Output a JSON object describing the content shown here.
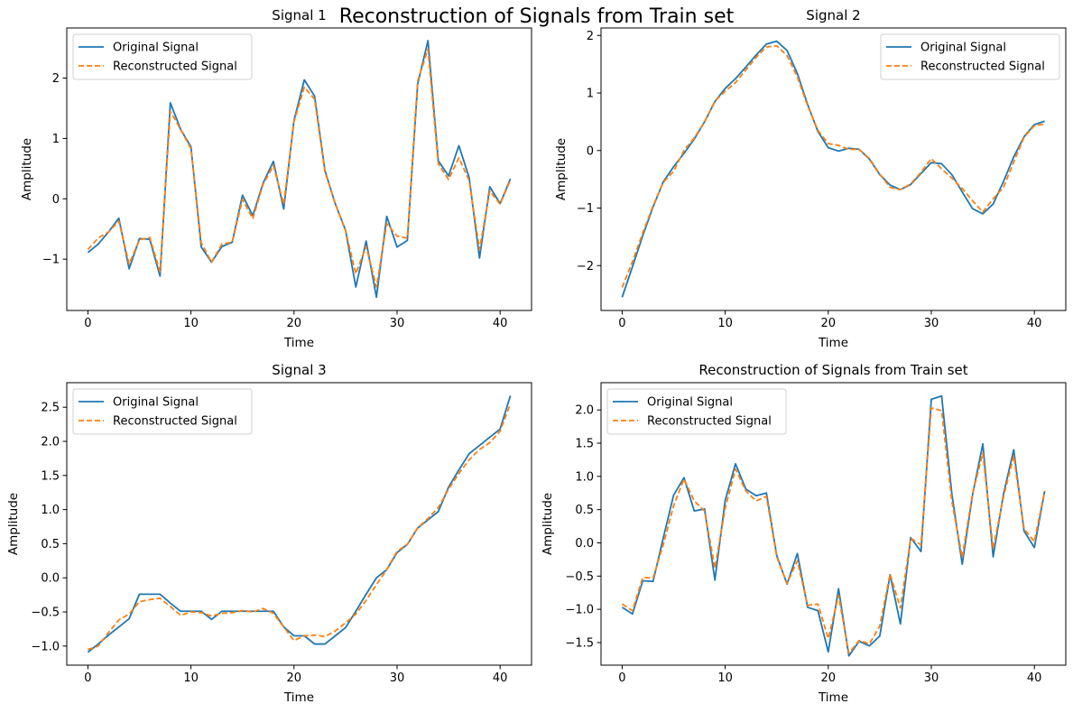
{
  "figure": {
    "suptitle": "Reconstruction of Signals from Train set"
  },
  "colors": {
    "original": "#1f77b4",
    "reconstructed": "#ff7f0e"
  },
  "chart_data": [
    {
      "type": "line",
      "title": "Signal 1",
      "xlabel": "Time",
      "ylabel": "Amplitude",
      "xlim": [
        -2.05,
        43.05
      ],
      "ylim": [
        -1.85,
        2.83
      ],
      "xticks": [
        0,
        10,
        20,
        30,
        40
      ],
      "yticks": [
        -1,
        0,
        1,
        2
      ],
      "legend_position": "upper left",
      "series": [
        {
          "name": "Original Signal",
          "style": "solid",
          "values": [
            -0.89,
            -0.75,
            -0.55,
            -0.32,
            -1.16,
            -0.66,
            -0.67,
            -1.28,
            1.59,
            1.15,
            0.86,
            -0.8,
            -1.05,
            -0.79,
            -0.72,
            0.06,
            -0.28,
            0.26,
            0.62,
            -0.17,
            1.3,
            1.97,
            1.7,
            0.47,
            -0.08,
            -0.52,
            -1.46,
            -0.7,
            -1.63,
            -0.29,
            -0.8,
            -0.69,
            1.9,
            2.62,
            0.63,
            0.38,
            0.88,
            0.35,
            -0.98,
            0.2,
            -0.08,
            0.33
          ]
        },
        {
          "name": "Reconstructed Signal",
          "style": "dashed",
          "values": [
            -0.84,
            -0.65,
            -0.55,
            -0.37,
            -1.08,
            -0.68,
            -0.64,
            -1.21,
            1.45,
            1.15,
            0.83,
            -0.73,
            -1.05,
            -0.75,
            -0.72,
            -0.01,
            -0.33,
            0.24,
            0.55,
            -0.09,
            1.28,
            1.85,
            1.65,
            0.45,
            -0.08,
            -0.53,
            -1.24,
            -0.79,
            -1.46,
            -0.41,
            -0.62,
            -0.65,
            1.95,
            2.48,
            0.58,
            0.32,
            0.68,
            0.3,
            -0.84,
            0.13,
            -0.09,
            0.31
          ]
        }
      ]
    },
    {
      "type": "line",
      "title": "Signal 2",
      "xlabel": "Time",
      "ylabel": "Amplitude",
      "xlim": [
        -2.05,
        43.05
      ],
      "ylim": [
        -2.78,
        2.13
      ],
      "xticks": [
        0,
        10,
        20,
        30,
        40
      ],
      "yticks": [
        -2,
        -1,
        0,
        1,
        2
      ],
      "legend_position": "upper right",
      "series": [
        {
          "name": "Original Signal",
          "style": "solid",
          "values": [
            -2.55,
            -2.02,
            -1.48,
            -0.98,
            -0.54,
            -0.28,
            -0.05,
            0.2,
            0.5,
            0.85,
            1.08,
            1.25,
            1.45,
            1.66,
            1.85,
            1.9,
            1.74,
            1.34,
            0.8,
            0.33,
            0.05,
            -0.01,
            0.04,
            0.02,
            -0.15,
            -0.42,
            -0.6,
            -0.68,
            -0.59,
            -0.4,
            -0.21,
            -0.23,
            -0.42,
            -0.72,
            -1.01,
            -1.1,
            -0.93,
            -0.54,
            -0.11,
            0.24,
            0.45,
            0.51
          ]
        },
        {
          "name": "Reconstructed Signal",
          "style": "dashed",
          "values": [
            -2.38,
            -1.93,
            -1.43,
            -0.96,
            -0.55,
            -0.36,
            0.0,
            0.22,
            0.5,
            0.86,
            1.03,
            1.18,
            1.4,
            1.62,
            1.8,
            1.82,
            1.65,
            1.28,
            0.78,
            0.35,
            0.12,
            0.09,
            0.02,
            0.02,
            -0.14,
            -0.41,
            -0.64,
            -0.68,
            -0.58,
            -0.38,
            -0.14,
            -0.32,
            -0.48,
            -0.66,
            -0.87,
            -1.07,
            -0.84,
            -0.64,
            -0.2,
            0.23,
            0.43,
            0.46
          ]
        }
      ]
    },
    {
      "type": "line",
      "title": "Signal 3",
      "xlabel": "Time",
      "ylabel": "Amplitude",
      "xlim": [
        -2.05,
        43.05
      ],
      "ylim": [
        -1.28,
        2.86
      ],
      "xticks": [
        0,
        10,
        20,
        30,
        40
      ],
      "yticks": [
        -1.0,
        -0.5,
        0.0,
        0.5,
        1.0,
        1.5,
        2.0,
        2.5
      ],
      "legend_position": "upper left",
      "series": [
        {
          "name": "Original Signal",
          "style": "solid",
          "values": [
            -1.09,
            -0.97,
            -0.84,
            -0.72,
            -0.6,
            -0.24,
            -0.24,
            -0.24,
            -0.37,
            -0.49,
            -0.49,
            -0.49,
            -0.61,
            -0.49,
            -0.49,
            -0.49,
            -0.49,
            -0.49,
            -0.49,
            -0.72,
            -0.85,
            -0.85,
            -0.97,
            -0.97,
            -0.85,
            -0.73,
            -0.49,
            -0.24,
            0.0,
            0.12,
            0.37,
            0.49,
            0.73,
            0.85,
            0.97,
            1.33,
            1.58,
            1.82,
            1.94,
            2.06,
            2.18,
            2.67
          ]
        },
        {
          "name": "Reconstructed Signal",
          "style": "dashed",
          "values": [
            -1.05,
            -1.0,
            -0.8,
            -0.62,
            -0.53,
            -0.35,
            -0.32,
            -0.3,
            -0.42,
            -0.55,
            -0.5,
            -0.51,
            -0.56,
            -0.52,
            -0.51,
            -0.48,
            -0.5,
            -0.45,
            -0.52,
            -0.72,
            -0.92,
            -0.85,
            -0.84,
            -0.86,
            -0.78,
            -0.66,
            -0.53,
            -0.33,
            -0.1,
            0.12,
            0.39,
            0.49,
            0.73,
            0.87,
            1.03,
            1.3,
            1.53,
            1.73,
            1.88,
            1.98,
            2.15,
            2.55
          ]
        }
      ]
    },
    {
      "type": "line",
      "title": "Reconstruction of Signals from Train set",
      "xlabel": "Time",
      "ylabel": "Amplitude",
      "xlim": [
        -2.05,
        43.05
      ],
      "ylim": [
        -1.84,
        2.41
      ],
      "xticks": [
        0,
        10,
        20,
        30,
        40
      ],
      "yticks": [
        -1.5,
        -1.0,
        -0.5,
        0.0,
        0.5,
        1.0,
        1.5,
        2.0
      ],
      "legend_position": "upper left",
      "series": [
        {
          "name": "Original Signal",
          "style": "solid",
          "values": [
            -0.97,
            -1.07,
            -0.57,
            -0.58,
            0.08,
            0.72,
            0.98,
            0.48,
            0.51,
            -0.56,
            0.64,
            1.19,
            0.81,
            0.71,
            0.75,
            -0.19,
            -0.62,
            -0.16,
            -0.97,
            -1.02,
            -1.64,
            -0.69,
            -1.7,
            -1.48,
            -1.55,
            -1.4,
            -0.48,
            -1.22,
            0.08,
            -0.13,
            2.16,
            2.21,
            0.73,
            -0.32,
            0.72,
            1.49,
            -0.21,
            0.73,
            1.4,
            0.18,
            -0.07,
            0.78
          ]
        },
        {
          "name": "Reconstructed Signal",
          "style": "dashed",
          "values": [
            -0.92,
            -1.02,
            -0.52,
            -0.53,
            -0.02,
            0.56,
            0.96,
            0.63,
            0.48,
            -0.38,
            0.52,
            1.11,
            0.78,
            0.63,
            0.7,
            -0.21,
            -0.61,
            -0.27,
            -0.94,
            -0.92,
            -1.44,
            -0.79,
            -1.66,
            -1.47,
            -1.52,
            -1.25,
            -0.47,
            -0.98,
            0.07,
            -0.03,
            2.03,
            1.99,
            0.62,
            -0.22,
            0.74,
            1.35,
            -0.09,
            0.69,
            1.31,
            0.21,
            0.02,
            0.78
          ]
        }
      ]
    }
  ]
}
